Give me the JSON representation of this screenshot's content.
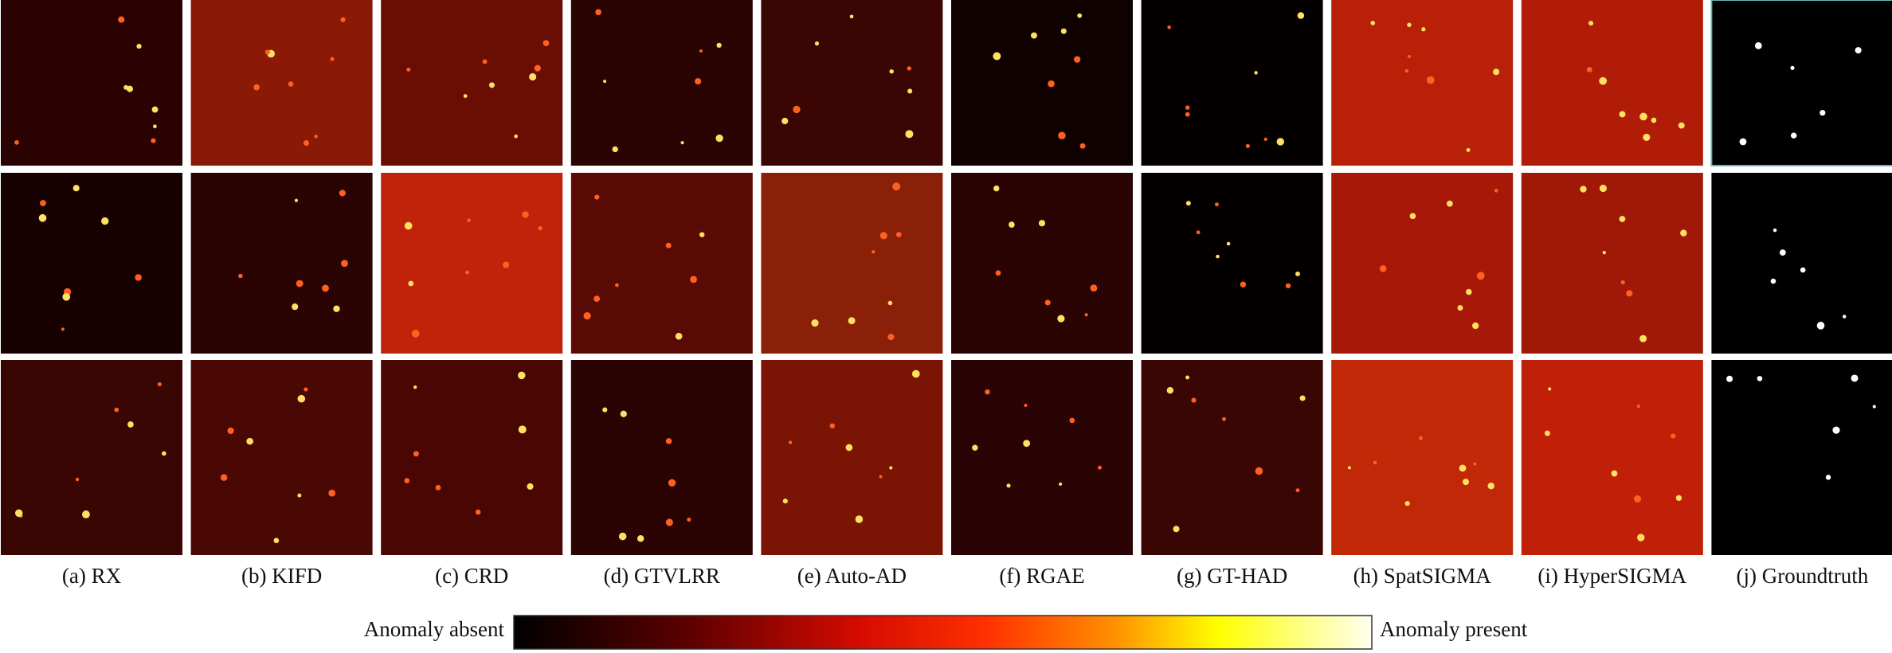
{
  "captions": [
    "(a) RX",
    "(b) KIFD",
    "(c) CRD",
    "(d) GTVLRR",
    "(e) Auto-AD",
    "(f) RGAE",
    "(g) GT-HAD",
    "(h) SpatSIGMA",
    "(i) HyperSIGMA",
    "(j) Groundtruth"
  ],
  "colorbar": {
    "left_label": "Anomaly absent",
    "right_label": "Anomaly present"
  }
}
